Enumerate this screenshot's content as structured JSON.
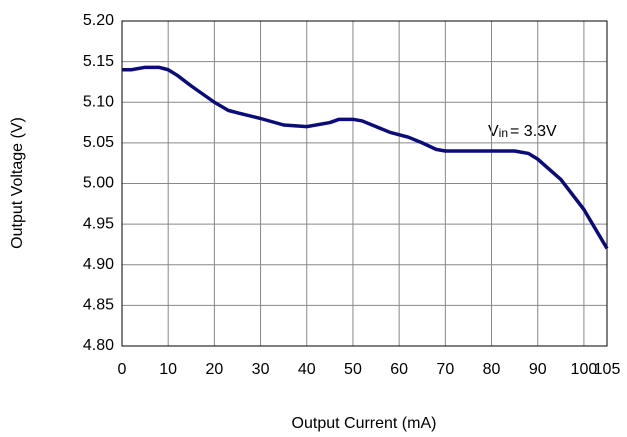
{
  "chart_data": {
    "type": "line",
    "x_label": "Output Current (mA)",
    "y_label": "Output Voltage  (V)",
    "annotation": {
      "main": "V",
      "sub": "in",
      "rest": "= 3.3V"
    },
    "xlim": [
      0,
      105
    ],
    "xticks": [
      0,
      10,
      20,
      30,
      40,
      50,
      60,
      70,
      80,
      90,
      100,
      105
    ],
    "ylim": [
      4.8,
      5.2
    ],
    "yticks": [
      {
        "value": 4.8,
        "label": "4.80"
      },
      4.85,
      {
        "value": 4.9,
        "label": "4.90"
      },
      4.95,
      {
        "value": 5.0,
        "label": "5.00"
      },
      5.05,
      {
        "value": 5.1,
        "label": "5.10"
      },
      5.15,
      {
        "value": 5.2,
        "label": "5.20"
      }
    ],
    "grid": true,
    "series": [
      {
        "color": "#0b0b7a",
        "x": [
          0,
          2,
          5,
          8,
          10,
          12,
          15,
          20,
          23,
          25,
          30,
          35,
          40,
          45,
          47,
          50,
          52,
          55,
          58,
          62,
          65,
          68,
          70,
          80,
          85,
          88,
          90,
          95,
          100,
          105
        ],
        "values": [
          5.14,
          5.14,
          5.143,
          5.143,
          5.14,
          5.133,
          5.12,
          5.1,
          5.09,
          5.087,
          5.08,
          5.072,
          5.07,
          5.075,
          5.079,
          5.079,
          5.077,
          5.07,
          5.063,
          5.057,
          5.05,
          5.042,
          5.04,
          5.04,
          5.04,
          5.037,
          5.03,
          5.005,
          4.968,
          4.92
        ]
      }
    ]
  }
}
